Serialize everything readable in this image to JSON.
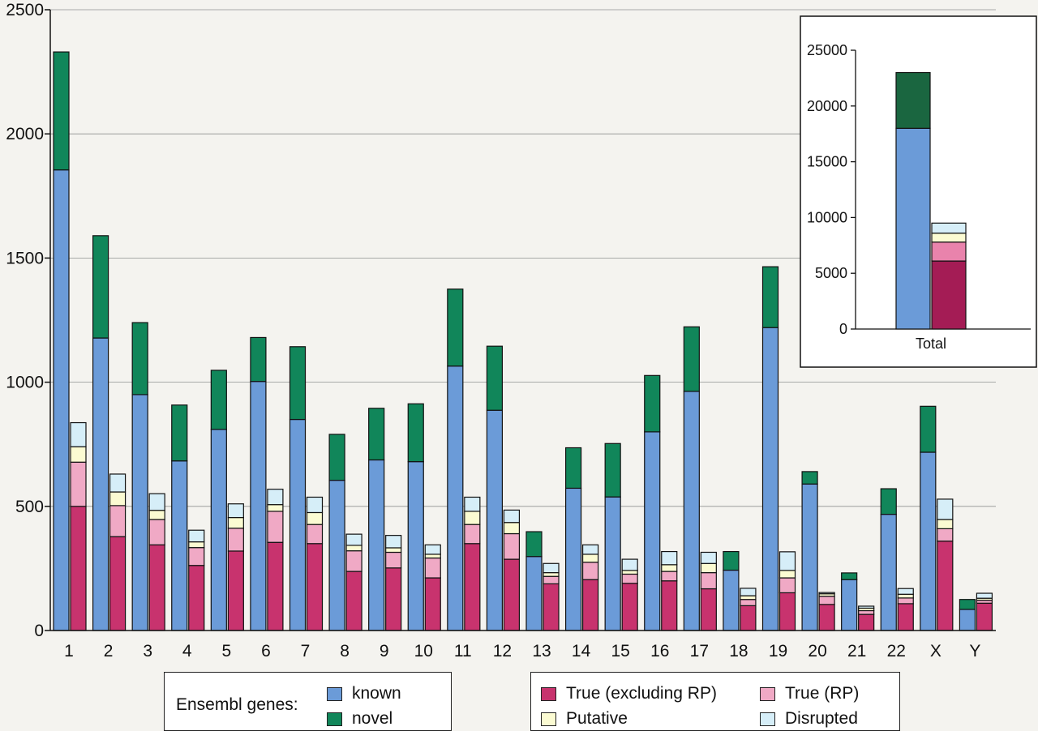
{
  "chart_data": [
    {
      "type": "bar",
      "categories": [
        "1",
        "2",
        "3",
        "4",
        "5",
        "6",
        "7",
        "8",
        "9",
        "10",
        "11",
        "12",
        "13",
        "14",
        "15",
        "16",
        "17",
        "18",
        "19",
        "20",
        "21",
        "22",
        "X",
        "Y"
      ],
      "ylim": [
        0,
        2500
      ],
      "yticks": [
        0,
        500,
        1000,
        1500,
        2000,
        2500
      ],
      "grid": true,
      "ensembl_stack": [
        {
          "name": "known",
          "color": "#6b9bd8",
          "values": [
            1855,
            1178,
            950,
            683,
            810,
            1003,
            850,
            605,
            687,
            680,
            1065,
            887,
            298,
            573,
            538,
            800,
            963,
            243,
            1220,
            590,
            205,
            468,
            718,
            85
          ]
        },
        {
          "name": "novel",
          "color": "#11865a",
          "values": [
            475,
            412,
            290,
            225,
            238,
            177,
            293,
            185,
            208,
            233,
            310,
            258,
            100,
            163,
            215,
            227,
            260,
            75,
            245,
            50,
            27,
            103,
            185,
            40
          ]
        }
      ],
      "pseudogene_stack": [
        {
          "name": "True (excluding RP)",
          "color": "#c8336e",
          "values": [
            500,
            378,
            345,
            262,
            320,
            355,
            350,
            238,
            252,
            212,
            350,
            287,
            188,
            205,
            190,
            200,
            168,
            100,
            152,
            105,
            65,
            108,
            360,
            110
          ]
        },
        {
          "name": "True (RP)",
          "color": "#f0a9c5",
          "values": [
            178,
            125,
            102,
            72,
            92,
            125,
            77,
            83,
            63,
            80,
            77,
            103,
            30,
            70,
            37,
            38,
            65,
            25,
            60,
            33,
            15,
            23,
            50,
            12
          ]
        },
        {
          "name": "Putative",
          "color": "#fbfbd2",
          "values": [
            62,
            55,
            37,
            23,
            43,
            27,
            48,
            22,
            18,
            15,
            53,
            45,
            15,
            32,
            15,
            27,
            37,
            15,
            30,
            10,
            10,
            15,
            37,
            8
          ]
        },
        {
          "name": "Disrupted",
          "color": "#d6eef8",
          "values": [
            97,
            72,
            67,
            47,
            55,
            62,
            62,
            45,
            50,
            38,
            57,
            50,
            37,
            38,
            45,
            53,
            45,
            30,
            75,
            5,
            8,
            23,
            82,
            20
          ]
        }
      ]
    },
    {
      "type": "bar",
      "categories": [
        "Total"
      ],
      "ylim": [
        0,
        25000
      ],
      "yticks": [
        0,
        5000,
        10000,
        15000,
        20000,
        25000
      ],
      "ensembl_stack": [
        {
          "name": "known",
          "color": "#6b9bd8",
          "values": [
            18000
          ]
        },
        {
          "name": "novel",
          "color": "#1a6640",
          "values": [
            5000
          ]
        }
      ],
      "pseudogene_stack": [
        {
          "name": "True (excluding RP)",
          "color": "#a41c55",
          "values": [
            6100
          ]
        },
        {
          "name": "True (RP)",
          "color": "#e983ac",
          "values": [
            1700
          ]
        },
        {
          "name": "Putative",
          "color": "#fbfbd2",
          "values": [
            800
          ]
        },
        {
          "name": "Disrupted",
          "color": "#d6eef8",
          "values": [
            900
          ]
        }
      ]
    }
  ],
  "legend": {
    "ensembl_title": "Ensembl genes:",
    "known": "known",
    "novel": "novel",
    "true_excl_rp": "True (excluding RP)",
    "true_rp": "True (RP)",
    "putative": "Putative",
    "disrupted": "Disrupted"
  },
  "colors": {
    "known": "#6b9bd8",
    "novel": "#11865a",
    "true_excl_rp": "#c8336e",
    "true_rp": "#f0a9c5",
    "putative": "#fbfbd2",
    "disrupted": "#d6eef8"
  }
}
